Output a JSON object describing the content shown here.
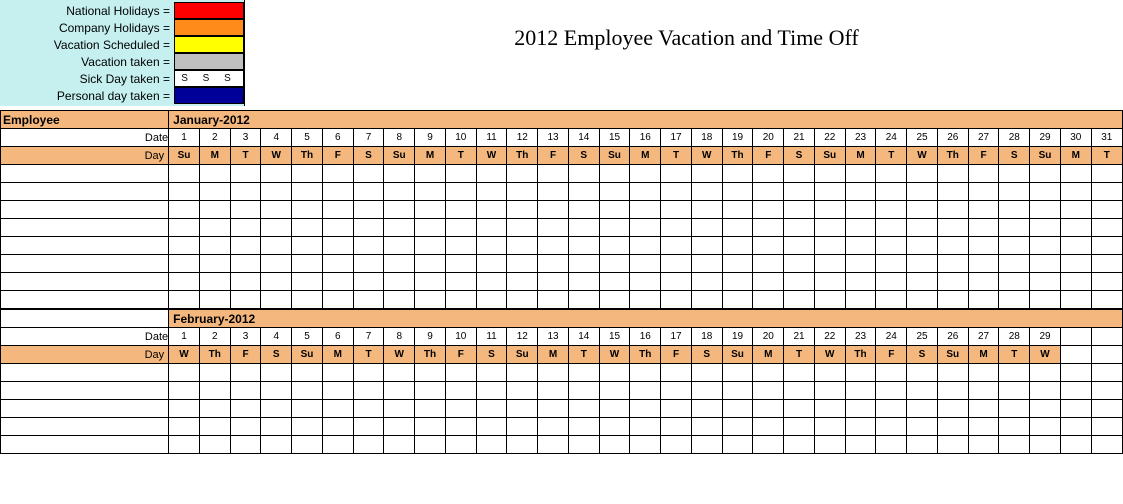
{
  "title": "2012 Employee Vacation and Time Off",
  "legend": {
    "bg_color": "#c6f0f0",
    "items": [
      {
        "label": "National Holidays =",
        "color": "#ff0000",
        "text": ""
      },
      {
        "label": "Company Holidays =",
        "color": "#ff8c1a",
        "text": ""
      },
      {
        "label": "Vacation Scheduled =",
        "color": "#ffff00",
        "text": ""
      },
      {
        "label": "Vacation taken =",
        "color": "#bfbfbf",
        "text": ""
      },
      {
        "label": "Sick Day taken =",
        "color": "#ffffff",
        "text": "S  S  S"
      },
      {
        "label": "Personal day taken =",
        "color": "#000099",
        "text": ""
      }
    ]
  },
  "calendar": {
    "header_bg": "#f4b77e",
    "border_color": "#000000",
    "max_days": 31,
    "blank_rows": 8,
    "employee_heading": "Employee",
    "date_row_label": "Date",
    "day_row_label": "Day",
    "months": [
      {
        "name": "January-2012",
        "show_employee_heading": true,
        "days": [
          {
            "n": 1,
            "d": "Su"
          },
          {
            "n": 2,
            "d": "M"
          },
          {
            "n": 3,
            "d": "T"
          },
          {
            "n": 4,
            "d": "W"
          },
          {
            "n": 5,
            "d": "Th"
          },
          {
            "n": 6,
            "d": "F"
          },
          {
            "n": 7,
            "d": "S"
          },
          {
            "n": 8,
            "d": "Su"
          },
          {
            "n": 9,
            "d": "M"
          },
          {
            "n": 10,
            "d": "T"
          },
          {
            "n": 11,
            "d": "W"
          },
          {
            "n": 12,
            "d": "Th"
          },
          {
            "n": 13,
            "d": "F"
          },
          {
            "n": 14,
            "d": "S"
          },
          {
            "n": 15,
            "d": "Su"
          },
          {
            "n": 16,
            "d": "M"
          },
          {
            "n": 17,
            "d": "T"
          },
          {
            "n": 18,
            "d": "W"
          },
          {
            "n": 19,
            "d": "Th"
          },
          {
            "n": 20,
            "d": "F"
          },
          {
            "n": 21,
            "d": "S"
          },
          {
            "n": 22,
            "d": "Su"
          },
          {
            "n": 23,
            "d": "M"
          },
          {
            "n": 24,
            "d": "T"
          },
          {
            "n": 25,
            "d": "W"
          },
          {
            "n": 26,
            "d": "Th"
          },
          {
            "n": 27,
            "d": "F"
          },
          {
            "n": 28,
            "d": "S"
          },
          {
            "n": 29,
            "d": "Su"
          },
          {
            "n": 30,
            "d": "M"
          },
          {
            "n": 31,
            "d": "T"
          }
        ]
      },
      {
        "name": "February-2012",
        "show_employee_heading": false,
        "days": [
          {
            "n": 1,
            "d": "W"
          },
          {
            "n": 2,
            "d": "Th"
          },
          {
            "n": 3,
            "d": "F"
          },
          {
            "n": 4,
            "d": "S"
          },
          {
            "n": 5,
            "d": "Su"
          },
          {
            "n": 6,
            "d": "M"
          },
          {
            "n": 7,
            "d": "T"
          },
          {
            "n": 8,
            "d": "W"
          },
          {
            "n": 9,
            "d": "Th"
          },
          {
            "n": 10,
            "d": "F"
          },
          {
            "n": 11,
            "d": "S"
          },
          {
            "n": 12,
            "d": "Su"
          },
          {
            "n": 13,
            "d": "M"
          },
          {
            "n": 14,
            "d": "T"
          },
          {
            "n": 15,
            "d": "W"
          },
          {
            "n": 16,
            "d": "Th"
          },
          {
            "n": 17,
            "d": "F"
          },
          {
            "n": 18,
            "d": "S"
          },
          {
            "n": 19,
            "d": "Su"
          },
          {
            "n": 20,
            "d": "M"
          },
          {
            "n": 21,
            "d": "T"
          },
          {
            "n": 22,
            "d": "W"
          },
          {
            "n": 23,
            "d": "Th"
          },
          {
            "n": 24,
            "d": "F"
          },
          {
            "n": 25,
            "d": "S"
          },
          {
            "n": 26,
            "d": "Su"
          },
          {
            "n": 27,
            "d": "M"
          },
          {
            "n": 28,
            "d": "T"
          },
          {
            "n": 29,
            "d": "W"
          }
        ]
      }
    ]
  }
}
